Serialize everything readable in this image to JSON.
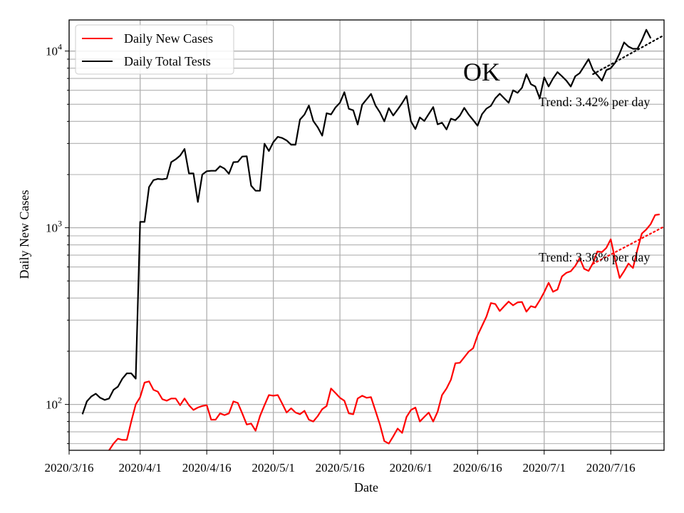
{
  "chart_data": {
    "type": "line",
    "title": "",
    "state_label": "OK",
    "xlabel": "Date",
    "ylabel": "Daily New Cases",
    "yscale": "log",
    "ylim": [
      55,
      15000
    ],
    "xlim": [
      "2020-03-16",
      "2020-07-28"
    ],
    "x_tick_labels": [
      "2020/3/16",
      "2020/4/1",
      "2020/4/16",
      "2020/5/1",
      "2020/5/16",
      "2020/6/1",
      "2020/6/16",
      "2020/7/1",
      "2020/7/16"
    ],
    "x_tick_dates": [
      "2020-03-16",
      "2020-04-01",
      "2020-04-16",
      "2020-05-01",
      "2020-05-16",
      "2020-06-01",
      "2020-06-16",
      "2020-07-01",
      "2020-07-16"
    ],
    "y_ticks": [
      {
        "value": 100,
        "mantissa": "10",
        "exp": "2"
      },
      {
        "value": 1000,
        "mantissa": "10",
        "exp": "3"
      },
      {
        "value": 10000,
        "mantissa": "10",
        "exp": "4"
      }
    ],
    "grid": true,
    "legend": {
      "position": "top-left",
      "entries": [
        {
          "label": "Daily New Cases",
          "color": "#ff0000"
        },
        {
          "label": "Daily Total Tests",
          "color": "#000000"
        }
      ]
    },
    "series": [
      {
        "name": "Daily New Cases",
        "color": "#ff0000",
        "start_date": "2020-03-25",
        "values": [
          55,
          60,
          64,
          63,
          63,
          80,
          100,
          110,
          133,
          135,
          121,
          118,
          107,
          105,
          108,
          108,
          99,
          108,
          99,
          93,
          96,
          98,
          99,
          82,
          82,
          89,
          87,
          89,
          104,
          102,
          89,
          77,
          78,
          71,
          86,
          99,
          113,
          112,
          113,
          101,
          90,
          95,
          90,
          88,
          92,
          82,
          80,
          86,
          94,
          98,
          123,
          116,
          109,
          105,
          89,
          88,
          108,
          112,
          109,
          110,
          92,
          77,
          62,
          60,
          66,
          73,
          69,
          85,
          93,
          96,
          80,
          85,
          90,
          80,
          91,
          113,
          123,
          138,
          171,
          172,
          185,
          199,
          208,
          246,
          278,
          314,
          375,
          370,
          338,
          360,
          382,
          364,
          378,
          380,
          335,
          360,
          354,
          388,
          432,
          488,
          434,
          447,
          530,
          556,
          567,
          608,
          672,
          586,
          570,
          632,
          735,
          728,
          769,
          860,
          657,
          520,
          567,
          627,
          592,
          750,
          927,
          977,
          1050,
          1180,
          1190
        ]
      },
      {
        "name": "Daily Total Tests",
        "color": "#000000",
        "start_date": "2020-03-19",
        "values": [
          88,
          104,
          111,
          115,
          109,
          106,
          108,
          121,
          126,
          140,
          150,
          150,
          140,
          1080,
          1080,
          1700,
          1860,
          1890,
          1880,
          1900,
          2350,
          2440,
          2560,
          2790,
          2030,
          2030,
          1400,
          2000,
          2090,
          2100,
          2100,
          2230,
          2160,
          2020,
          2350,
          2360,
          2530,
          2540,
          1730,
          1620,
          1620,
          2990,
          2720,
          3050,
          3270,
          3220,
          3120,
          2950,
          2950,
          4090,
          4370,
          4920,
          4020,
          3700,
          3320,
          4450,
          4380,
          4800,
          5100,
          5850,
          4710,
          4620,
          3840,
          4970,
          5330,
          5720,
          4920,
          4500,
          4000,
          4750,
          4320,
          4670,
          5080,
          5570,
          4000,
          3620,
          4210,
          4020,
          4400,
          4820,
          3850,
          3930,
          3600,
          4140,
          4060,
          4310,
          4770,
          4370,
          4070,
          3780,
          4390,
          4720,
          4900,
          5400,
          5740,
          5400,
          5100,
          6000,
          5800,
          6200,
          7400,
          6500,
          6300,
          5400,
          7100,
          6300,
          7000,
          7600,
          7200,
          6800,
          6300,
          7200,
          7500,
          8200,
          9000,
          7800,
          7300,
          6800,
          7800,
          8000,
          8600,
          9700,
          11200,
          10600,
          10300,
          10300,
          11500,
          13200,
          11800
        ]
      }
    ],
    "trends": [
      {
        "label": "Trend: 3.36% per day",
        "series": "Daily New Cases",
        "color": "#ff0000",
        "start_date": "2020-07-12",
        "start_value": 625,
        "end_date": "2020-07-28",
        "end_value": 1015
      },
      {
        "label": "Trend: 3.42% per day",
        "series": "Daily Total Tests",
        "color": "#000000",
        "start_date": "2020-07-12",
        "start_value": 7400,
        "end_date": "2020-07-28",
        "end_value": 12300
      }
    ]
  }
}
